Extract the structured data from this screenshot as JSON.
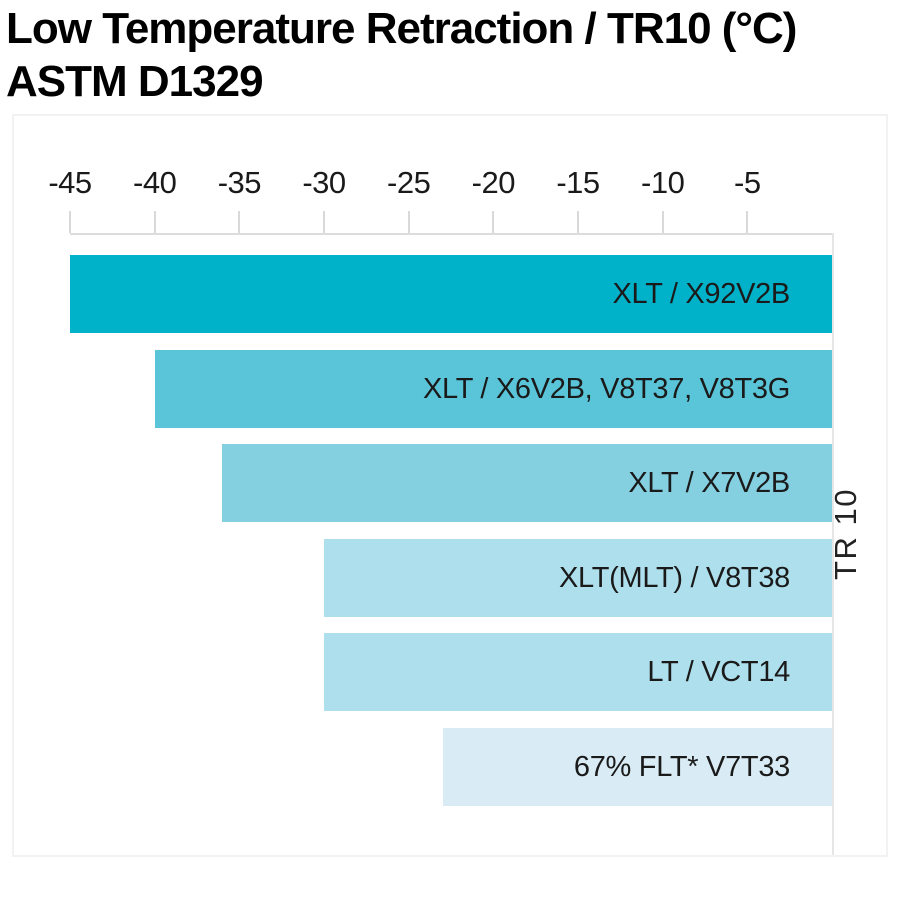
{
  "title": {
    "line1": "Low Temperature Retraction / TR10 (°C)",
    "line2": "ASTM D1329"
  },
  "chart_data": {
    "type": "bar",
    "orientation": "horizontal",
    "anchor": "right",
    "value_axis_position": "top",
    "title": "Low Temperature Retraction / TR10 (°C) ASTM D1329",
    "x_ticks": [
      -45,
      -40,
      -35,
      -30,
      -25,
      -20,
      -15,
      -10,
      -5
    ],
    "x_range": [
      -45,
      0
    ],
    "right_axis_label": "TR 10",
    "grid": false,
    "series": [
      {
        "label": "XLT / X92V2B",
        "value": -45,
        "color": "#00b2c9"
      },
      {
        "label": "XLT / X6V2B, V8T37, V8T3G",
        "value": -40,
        "color": "#5ac5d8"
      },
      {
        "label": "XLT / X7V2B",
        "value": -36,
        "color": "#84cfe0"
      },
      {
        "label": "XLT(MLT) / V8T38",
        "value": -30,
        "color": "#aedfec"
      },
      {
        "label": "LT / VCT14",
        "value": -30,
        "color": "#aedfec"
      },
      {
        "label": "67% FLT* V7T33",
        "value": -23,
        "color": "#d9ecf5"
      }
    ],
    "style": {
      "axis_line_color": "#dcdcdc",
      "tick_color": "#d9d9d9",
      "label_color": "#1a1a1a",
      "title_color": "#000000",
      "panel_border_color": "#f2f2f2"
    }
  }
}
